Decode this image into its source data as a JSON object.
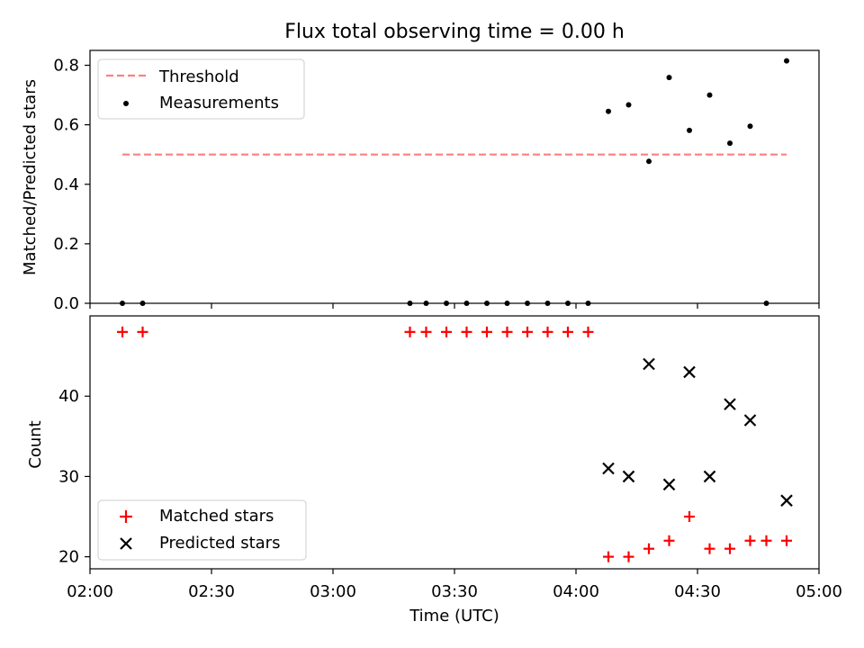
{
  "chart_data": [
    {
      "type": "scatter",
      "title": "Flux total observing time = 0.00 h",
      "xlabel": "",
      "ylabel": "Matched/Predicted stars",
      "xlim": [
        "02:00",
        "05:00"
      ],
      "ylim": [
        0,
        0.85
      ],
      "x_ticks": [
        "02:00",
        "02:30",
        "03:00",
        "03:30",
        "04:00",
        "04:30",
        "05:00"
      ],
      "y_ticks": [
        "0.0",
        "0.2",
        "0.4",
        "0.6",
        "0.8"
      ],
      "y_tick_values": [
        0.0,
        0.2,
        0.4,
        0.6,
        0.8
      ],
      "legend_position": "top-left",
      "legend": [
        "Threshold",
        "Measurements"
      ],
      "threshold": {
        "name": "Threshold",
        "y": 0.5,
        "x_start": "02:08",
        "x_end": "04:52",
        "color": "#ff7f7f",
        "style": "dashed"
      },
      "series": [
        {
          "name": "Measurements",
          "marker": "dot",
          "color": "#000000",
          "x": [
            "02:08",
            "02:13",
            "03:19",
            "03:23",
            "03:28",
            "03:33",
            "03:38",
            "03:43",
            "03:48",
            "03:53",
            "03:58",
            "04:03",
            "04:08",
            "04:13",
            "04:18",
            "04:23",
            "04:28",
            "04:33",
            "04:38",
            "04:43",
            "04:47",
            "04:52"
          ],
          "y": [
            0,
            0,
            0,
            0,
            0,
            0,
            0,
            0,
            0,
            0,
            0,
            0,
            0.645,
            0.667,
            0.477,
            0.759,
            0.581,
            0.7,
            0.538,
            0.595,
            0,
            0.815
          ]
        }
      ]
    },
    {
      "type": "scatter",
      "title": "",
      "xlabel": "Time (UTC)",
      "ylabel": "Count",
      "xlim": [
        "02:00",
        "05:00"
      ],
      "ylim": [
        18.5,
        50
      ],
      "x_ticks": [
        "02:00",
        "02:30",
        "03:00",
        "03:30",
        "04:00",
        "04:30",
        "05:00"
      ],
      "y_ticks": [
        "20",
        "30",
        "40"
      ],
      "y_tick_values": [
        20,
        30,
        40
      ],
      "legend_position": "bottom-left",
      "legend": [
        "Matched stars",
        "Predicted stars"
      ],
      "series": [
        {
          "name": "Matched stars",
          "marker": "plus",
          "color": "#ff0000",
          "x": [
            "02:08",
            "02:13",
            "03:19",
            "03:23",
            "03:28",
            "03:33",
            "03:38",
            "03:43",
            "03:48",
            "03:53",
            "03:58",
            "04:03",
            "04:08",
            "04:13",
            "04:18",
            "04:23",
            "04:28",
            "04:33",
            "04:38",
            "04:43",
            "04:47",
            "04:52"
          ],
          "y": [
            48,
            48,
            48,
            48,
            48,
            48,
            48,
            48,
            48,
            48,
            48,
            48,
            20,
            20,
            21,
            22,
            25,
            21,
            21,
            22,
            22,
            22
          ]
        },
        {
          "name": "Predicted stars",
          "marker": "x",
          "color": "#000000",
          "x": [
            "04:08",
            "04:13",
            "04:18",
            "04:23",
            "04:28",
            "04:33",
            "04:38",
            "04:43",
            "04:52"
          ],
          "y": [
            31,
            30,
            44,
            29,
            43,
            30,
            39,
            37,
            27
          ]
        }
      ]
    }
  ]
}
